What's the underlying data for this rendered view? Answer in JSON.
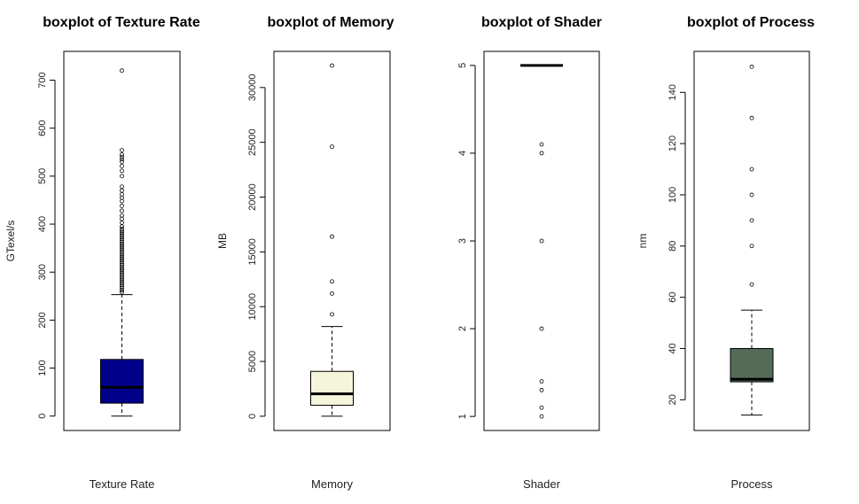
{
  "chart_data": [
    {
      "type": "boxplot",
      "title": "boxplot of Texture Rate",
      "xlabel": "Texture Rate",
      "ylabel": "GTexel/s",
      "ylim": [
        -30,
        760
      ],
      "yticks": [
        "0",
        "100",
        "200",
        "300",
        "400",
        "500",
        "600",
        "700"
      ],
      "box": {
        "min": 0,
        "q1": 27,
        "median": 60,
        "q3": 118,
        "max": 253
      },
      "outliers": [
        258,
        262,
        266,
        270,
        274,
        278,
        282,
        286,
        290,
        294,
        298,
        302,
        306,
        310,
        314,
        318,
        322,
        326,
        330,
        334,
        338,
        342,
        346,
        350,
        354,
        358,
        362,
        366,
        370,
        374,
        378,
        382,
        386,
        390,
        395,
        403,
        411,
        418,
        428,
        438,
        448,
        455,
        462,
        470,
        478,
        500,
        511,
        521,
        530,
        535,
        540,
        545,
        554,
        720
      ],
      "fill": "#00008b"
    },
    {
      "type": "boxplot",
      "title": "boxplot of Memory",
      "xlabel": "Memory",
      "ylabel": "MB",
      "ylim": [
        -1300,
        33300
      ],
      "yticks": [
        "0",
        "5000",
        "10000",
        "15000",
        "20000",
        "25000",
        "30000"
      ],
      "box": {
        "min": 0,
        "q1": 1000,
        "median": 2048,
        "q3": 4096,
        "max": 8192
      },
      "outliers": [
        9300,
        11200,
        12300,
        16400,
        24600,
        32000
      ],
      "fill": "#f5f5dc"
    },
    {
      "type": "boxplot",
      "title": "boxplot of Shader",
      "xlabel": "Shader",
      "ylabel": "",
      "ylim": [
        0.84,
        5.16
      ],
      "yticks": [
        "1",
        "2",
        "3",
        "4",
        "5"
      ],
      "box": {
        "min": 5,
        "q1": 5,
        "median": 5,
        "q3": 5,
        "max": 5
      },
      "outliers": [
        1.0,
        1.1,
        1.3,
        1.4,
        2.0,
        3.0,
        4.0,
        4.1
      ],
      "fill": "#ffffff"
    },
    {
      "type": "boxplot",
      "title": "boxplot of Process",
      "xlabel": "Process",
      "ylabel": "nm",
      "ylim": [
        8,
        156
      ],
      "yticks": [
        "20",
        "40",
        "60",
        "80",
        "100",
        "120",
        "140"
      ],
      "box": {
        "min": 14,
        "q1": 27,
        "median": 28,
        "q3": 40,
        "max": 55
      },
      "outliers": [
        65,
        80,
        90,
        100,
        110,
        130,
        150
      ],
      "fill": "#556b55"
    }
  ]
}
